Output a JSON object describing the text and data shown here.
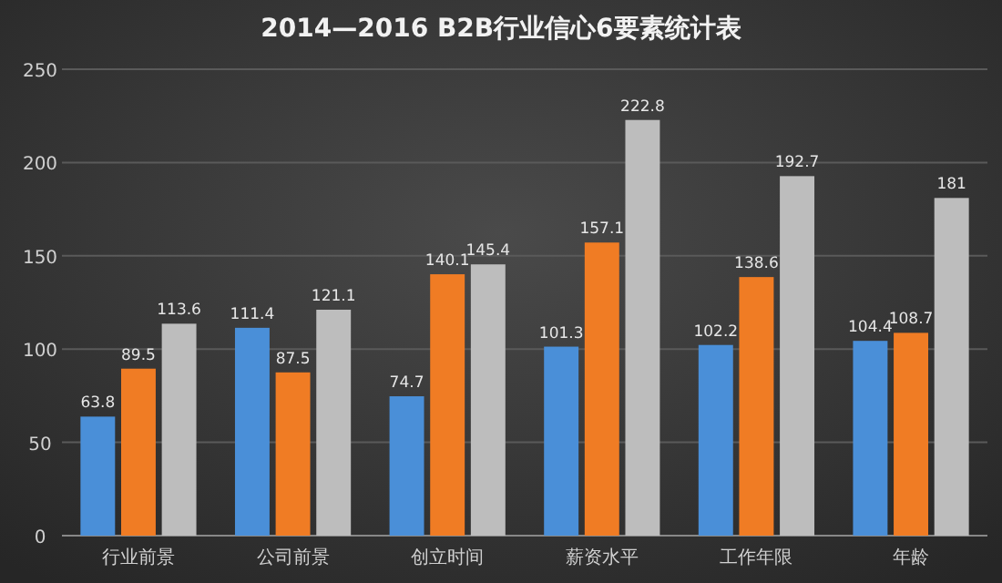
{
  "chart_data": {
    "type": "bar",
    "title": "2014—2016 B2B行业信心6要素统计表",
    "categories": [
      "行业前景",
      "公司前景",
      "创立时间",
      "薪资水平",
      "工作年限",
      "年龄"
    ],
    "series": [
      {
        "color": "#4a8fd8",
        "values": [
          63.8,
          111.4,
          74.7,
          101.3,
          102.2,
          104.4
        ]
      },
      {
        "color": "#f07c24",
        "values": [
          89.5,
          87.5,
          140.1,
          157.1,
          138.6,
          108.7
        ]
      },
      {
        "color": "#bdbdbd",
        "values": [
          113.6,
          121.1,
          145.4,
          222.8,
          192.7,
          181
        ]
      }
    ],
    "ylim": [
      0,
      250
    ],
    "yticks": [
      0,
      50,
      100,
      150,
      200,
      250
    ],
    "grid": "y",
    "data_labels": true
  }
}
